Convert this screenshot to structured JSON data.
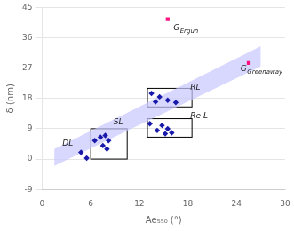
{
  "chart_data": {
    "type": "scatter",
    "xlabel": "Ae₅₅₀ (°)",
    "ylabel": "δ (nm)",
    "xlim": [
      0,
      30
    ],
    "ylim": [
      -9,
      45
    ],
    "xticks": [
      0,
      6,
      12,
      18,
      24,
      30
    ],
    "yticks": [
      -9,
      0,
      9,
      18,
      27,
      36,
      45
    ],
    "grid": "y",
    "legend": false,
    "series": [
      {
        "color": "#1a1aaa",
        "marker": "diamond",
        "x": [
          4.8,
          5.5
        ],
        "values": [
          2.0,
          0.3
        ]
      },
      {
        "color": "#1a1aaa",
        "marker": "diamond",
        "x": [
          6.5,
          7.2,
          7.8,
          8.2,
          7.5,
          8.0
        ],
        "values": [
          5.5,
          6.5,
          7.0,
          5.5,
          4.0,
          3.0
        ]
      },
      {
        "color": "#1a1aaa",
        "marker": "diamond",
        "x": [
          13.5,
          14.5,
          15.5,
          16.5,
          14.0
        ],
        "values": [
          19.5,
          18.5,
          17.5,
          16.8,
          17.0
        ]
      },
      {
        "color": "#1a1aaa",
        "marker": "diamond",
        "x": [
          13.3,
          14.2,
          15.2,
          16.0,
          15.5,
          14.8
        ],
        "values": [
          10.5,
          8.5,
          7.5,
          7.8,
          9.0,
          10.0
        ]
      },
      {
        "color": "#ff1080",
        "marker": "square",
        "x": [
          15.5,
          25.5
        ],
        "values": [
          41.5,
          28.5
        ]
      }
    ],
    "band": {
      "color": "#c8c8ff",
      "x": [
        1.5,
        27.0
      ],
      "lo": [
        -2.0,
        27.5
      ],
      "hi": [
        3.0,
        33.5
      ]
    },
    "boxes": {
      "color": "#000000",
      "rects": [
        {
          "x": 6.0,
          "y": 0.0,
          "width": 4.5,
          "height": 9.0
        },
        {
          "x": 13.0,
          "y": 15.5,
          "width": 5.5,
          "height": 5.5
        },
        {
          "x": 13.0,
          "y": 6.5,
          "width": 5.5,
          "height": 5.5
        }
      ]
    },
    "annotations": [
      {
        "text": "G",
        "subscript": "Ergun",
        "x": 16.2,
        "y": 40.0
      },
      {
        "text": "G",
        "subscript": "Greenaway",
        "x": 24.5,
        "y": 27.8
      },
      {
        "text": "DL",
        "x": 2.5,
        "y": 3.5
      },
      {
        "text": "SL",
        "x": 8.8,
        "y": 9.8
      },
      {
        "text": "RL",
        "x": 18.3,
        "y": 20.0
      },
      {
        "text": "Re L",
        "x": 18.3,
        "y": 11.5
      }
    ]
  }
}
